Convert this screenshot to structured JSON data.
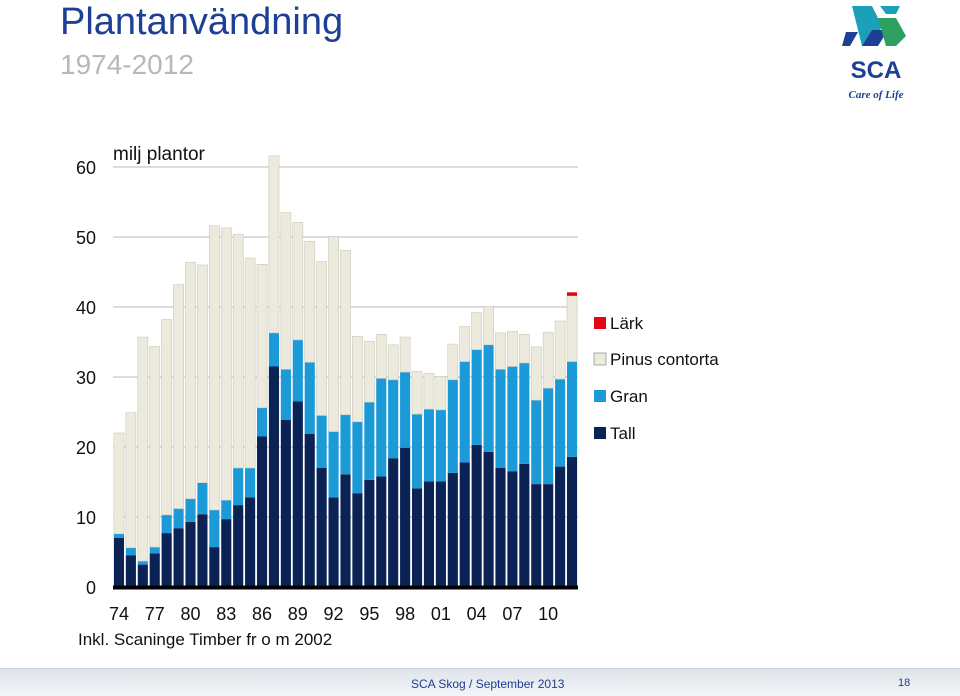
{
  "header": {
    "title": "Plantanvändning",
    "subtitle": "1974-2012",
    "logo_text": "SCA",
    "logo_tagline": "Care of Life"
  },
  "footnote": "Inkl. Scaninge Timber fr o m 2002",
  "footer": {
    "text": "SCA Skog / September 2013",
    "page": "18"
  },
  "chart_data": {
    "type": "bar",
    "stacked": true,
    "ylabel": "milj plantor",
    "yticks": [
      0,
      10,
      20,
      30,
      40,
      50,
      60
    ],
    "ylim": [
      0,
      60
    ],
    "grid": true,
    "legend_position": "right",
    "x": [
      1974,
      1975,
      1976,
      1977,
      1978,
      1979,
      1980,
      1981,
      1982,
      1983,
      1984,
      1985,
      1986,
      1987,
      1988,
      1989,
      1990,
      1991,
      1992,
      1993,
      1994,
      1995,
      1996,
      1997,
      1998,
      1999,
      2000,
      2001,
      2002,
      2003,
      2004,
      2005,
      2006,
      2007,
      2008,
      2009,
      2010,
      2011,
      2012
    ],
    "xtick_labels": [
      "74",
      "77",
      "80",
      "83",
      "86",
      "89",
      "92",
      "95",
      "98",
      "01",
      "04",
      "07",
      "10"
    ],
    "xtick_years": [
      1974,
      1977,
      1980,
      1983,
      1986,
      1989,
      1992,
      1995,
      1998,
      2001,
      2004,
      2007,
      2010
    ],
    "series": [
      {
        "name": "Tall",
        "color": "#0b2255",
        "values": [
          7.0,
          4.5,
          3.2,
          4.8,
          7.7,
          8.4,
          9.3,
          10.4,
          5.7,
          9.7,
          11.7,
          12.8,
          21.5,
          31.5,
          23.9,
          26.5,
          21.9,
          17.0,
          12.8,
          16.1,
          13.4,
          15.3,
          15.8,
          18.4,
          19.9,
          14.1,
          15.1,
          15.1,
          16.3,
          17.8,
          20.3,
          19.3,
          17.0,
          16.5,
          17.6,
          14.7,
          14.7,
          17.2,
          18.6
        ]
      },
      {
        "name": "Gran",
        "color": "#1b9ad7",
        "values": [
          0.6,
          1.1,
          0.5,
          0.9,
          2.6,
          2.8,
          3.3,
          4.5,
          5.3,
          2.7,
          5.3,
          4.2,
          4.1,
          4.8,
          7.2,
          8.8,
          10.2,
          7.5,
          9.4,
          8.5,
          10.2,
          11.1,
          14.0,
          11.2,
          10.8,
          10.6,
          10.3,
          10.2,
          13.3,
          14.4,
          13.6,
          15.3,
          14.1,
          15.0,
          14.4,
          12.0,
          13.7,
          12.5,
          13.6
        ]
      },
      {
        "name": "Pinus contorta",
        "color": "#ebeadd",
        "values": [
          14.4,
          19.3,
          32.0,
          28.7,
          27.9,
          32.0,
          33.8,
          31.1,
          40.6,
          38.9,
          33.4,
          30.0,
          20.5,
          25.3,
          22.4,
          16.8,
          17.3,
          22.0,
          27.9,
          23.5,
          12.2,
          8.7,
          6.3,
          5.0,
          5.0,
          6.1,
          5.1,
          4.8,
          5.1,
          5.0,
          5.3,
          5.5,
          5.2,
          5.0,
          4.1,
          7.6,
          8.0,
          8.3,
          9.4
        ]
      },
      {
        "name": "Lärk",
        "color": "#e30613",
        "values": [
          0,
          0,
          0,
          0,
          0,
          0,
          0,
          0,
          0,
          0,
          0,
          0,
          0,
          0,
          0,
          0,
          0,
          0,
          0,
          0,
          0,
          0,
          0,
          0,
          0,
          0,
          0,
          0,
          0,
          0,
          0,
          0,
          0,
          0,
          0,
          0,
          0,
          0,
          0.5
        ]
      }
    ],
    "legend_order": [
      "Lärk",
      "Pinus contorta",
      "Gran",
      "Tall"
    ]
  }
}
